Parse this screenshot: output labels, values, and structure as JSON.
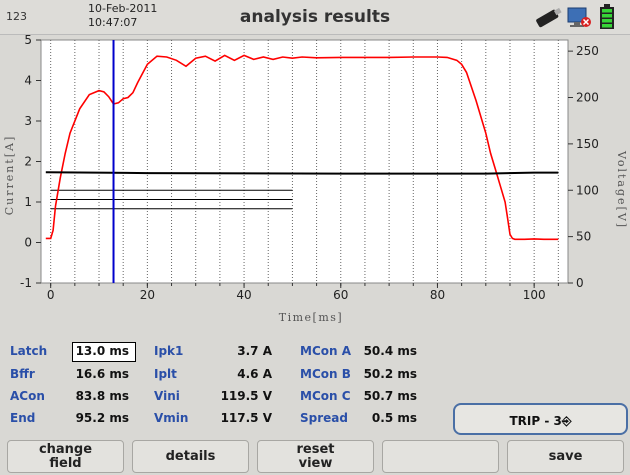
{
  "header": {
    "device_id": "123",
    "date": "10-Feb-2011",
    "time": "10:47:07",
    "title": "analysis results",
    "icons": [
      "usb-drive-icon",
      "network-disconnected-icon",
      "battery-full-icon"
    ]
  },
  "chart_data": {
    "type": "line",
    "xlabel": "Time[ms]",
    "ylabel_left": "Current[A]",
    "ylabel_right": "Voltage[V]",
    "xlim": [
      -2,
      107
    ],
    "ylim_left": [
      -1,
      5
    ],
    "ylim_right": [
      0,
      262
    ],
    "x_ticks": [
      "0",
      "20",
      "40",
      "60",
      "80",
      "100"
    ],
    "y_left_ticks": [
      "-1",
      "0",
      "1",
      "2",
      "3",
      "4",
      "5"
    ],
    "y_right_ticks": [
      "0",
      "50",
      "100",
      "150",
      "200",
      "250"
    ],
    "grid": "vertical-dotted",
    "cursor_x": 13.0,
    "series": [
      {
        "axis": "left",
        "color": "#ff0000",
        "x": [
          -1,
          0,
          0.5,
          1,
          2,
          3,
          4,
          6,
          8,
          10,
          11,
          12,
          13,
          14,
          15,
          16,
          17,
          18,
          20,
          22,
          24,
          26,
          28,
          30,
          32,
          34,
          36,
          38,
          40,
          42,
          44,
          46,
          48,
          50,
          52,
          55,
          60,
          65,
          70,
          75,
          80,
          82,
          84,
          85,
          86,
          88,
          90,
          91,
          92,
          93,
          94,
          94.5,
          95,
          95.5,
          96,
          98,
          100,
          102,
          105
        ],
        "y": [
          0.1,
          0.1,
          0.3,
          0.9,
          1.6,
          2.2,
          2.7,
          3.3,
          3.65,
          3.75,
          3.72,
          3.6,
          3.42,
          3.45,
          3.55,
          3.58,
          3.7,
          3.95,
          4.4,
          4.6,
          4.58,
          4.5,
          4.35,
          4.55,
          4.6,
          4.48,
          4.62,
          4.5,
          4.62,
          4.52,
          4.58,
          4.52,
          4.58,
          4.55,
          4.58,
          4.56,
          4.57,
          4.57,
          4.57,
          4.58,
          4.58,
          4.57,
          4.5,
          4.4,
          4.2,
          3.5,
          2.7,
          2.2,
          1.8,
          1.4,
          1.0,
          0.6,
          0.2,
          0.1,
          0.08,
          0.08,
          0.09,
          0.08,
          0.08
        ]
      },
      {
        "axis": "right",
        "color": "#000000",
        "x": [
          -1,
          20,
          60,
          90,
          100,
          105
        ],
        "y": [
          119.5,
          118.5,
          118.0,
          118.0,
          119.0,
          119.0
        ]
      }
    ],
    "reference_lines": [
      {
        "x1": 0,
        "x2": 50,
        "y_right": 100
      },
      {
        "x1": 0,
        "x2": 50,
        "y_right": 90
      },
      {
        "x1": 0,
        "x2": 50,
        "y_right": 80
      }
    ]
  },
  "params": {
    "latch": {
      "label": "Latch",
      "value": "13.0 ms"
    },
    "bffr": {
      "label": "Bffr",
      "value": "16.6 ms"
    },
    "acon": {
      "label": "ACon",
      "value": "83.8 ms"
    },
    "end": {
      "label": "End",
      "value": "95.2 ms"
    },
    "ipk1": {
      "label": "Ipk1",
      "value": "3.7 A"
    },
    "iplt": {
      "label": "Iplt",
      "value": "4.6 A"
    },
    "vini": {
      "label": "Vini",
      "value": "119.5 V"
    },
    "vmin": {
      "label": "Vmin",
      "value": "117.5 V"
    },
    "mcon_a": {
      "label": "MCon A",
      "value": "50.4 ms"
    },
    "mcon_b": {
      "label": "MCon B",
      "value": "50.2 ms"
    },
    "mcon_c": {
      "label": "MCon C",
      "value": "50.7 ms"
    },
    "spread": {
      "label": "Spread",
      "value": "0.5 ms"
    }
  },
  "trip_button": {
    "label": "TRIP - 3⎆"
  },
  "softkeys": {
    "k1": "change\nfield",
    "k2": "details",
    "k3": "reset\nview",
    "k4": "",
    "k5": "save"
  }
}
